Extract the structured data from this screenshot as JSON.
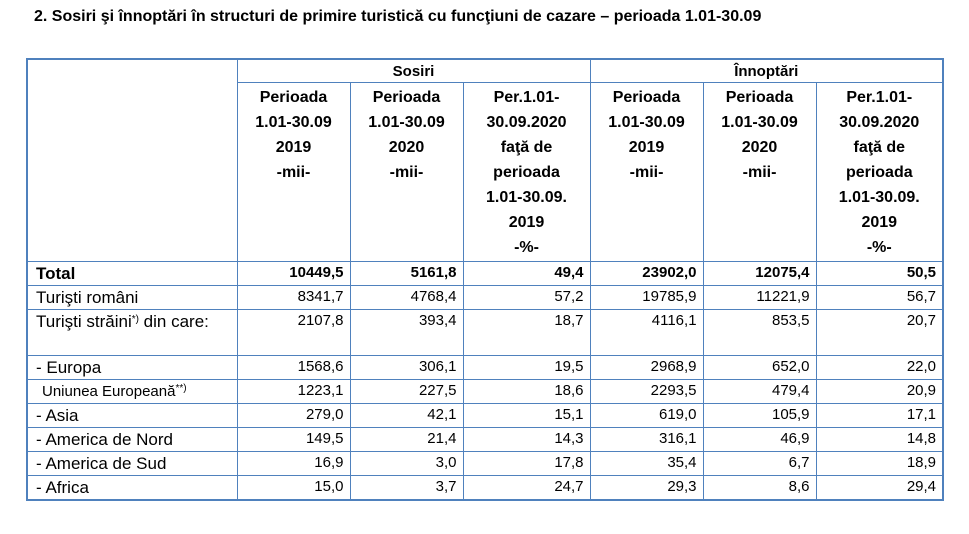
{
  "title": "2. Sosiri şi înnoptări  în structuri de primire turistică cu funcţiuni de cazare – perioada 1.01-30.09",
  "groups": {
    "sosiri": "Sosiri",
    "innoptari": "Înnoptări"
  },
  "columns": [
    [
      "Perioada",
      "1.01-30.09",
      "2019",
      "-mii-"
    ],
    [
      "Perioada",
      "1.01-30.09",
      "2020",
      "-mii-"
    ],
    [
      "Per.1.01-",
      "30.09.2020",
      "faţă de",
      "perioada",
      "1.01-30.09.",
      "2019",
      "-%-"
    ],
    [
      "Perioada",
      "1.01-30.09",
      "2019",
      "-mii-"
    ],
    [
      "Perioada",
      "1.01-30.09",
      "2020",
      "-mii-"
    ],
    [
      "Per.1.01-",
      "30.09.2020",
      "faţă de",
      "perioada",
      "1.01-30.09.",
      "2019",
      "-%-"
    ]
  ],
  "rows": [
    {
      "label": "Total",
      "values": [
        "10449,5",
        "5161,8",
        "49,4",
        "23902,0",
        "12075,4",
        "50,5"
      ]
    },
    {
      "label": "Turişti români",
      "values": [
        "8341,7",
        "4768,4",
        "57,2",
        "19785,9",
        "11221,9",
        "56,7"
      ]
    },
    {
      "label": "Turişti străini",
      "sup": "*)",
      "label_rest": " din care:",
      "values": [
        "2107,8",
        "393,4",
        "18,7",
        "4116,1",
        "853,5",
        "20,7"
      ]
    },
    {
      "label": "- Europa",
      "values": [
        "1568,6",
        "306,1",
        "19,5",
        "2968,9",
        "652,0",
        "22,0"
      ]
    },
    {
      "label": "Uniunea Europeană",
      "sup": "**)",
      "values": [
        "1223,1",
        "227,5",
        "18,6",
        "2293,5",
        "479,4",
        "20,9"
      ]
    },
    {
      "label": "- Asia",
      "values": [
        "279,0",
        "42,1",
        "15,1",
        "619,0",
        "105,9",
        "17,1"
      ]
    },
    {
      "label": "- America de Nord",
      "values": [
        "149,5",
        "21,4",
        "14,3",
        "316,1",
        "46,9",
        "14,8"
      ]
    },
    {
      "label": "- America de Sud",
      "values": [
        "16,9",
        "3,0",
        "17,8",
        "35,4",
        "6,7",
        "18,9"
      ]
    },
    {
      "label": "- Africa",
      "values": [
        "15,0",
        "3,7",
        "24,7",
        "29,3",
        "8,6",
        "29,4"
      ]
    }
  ]
}
